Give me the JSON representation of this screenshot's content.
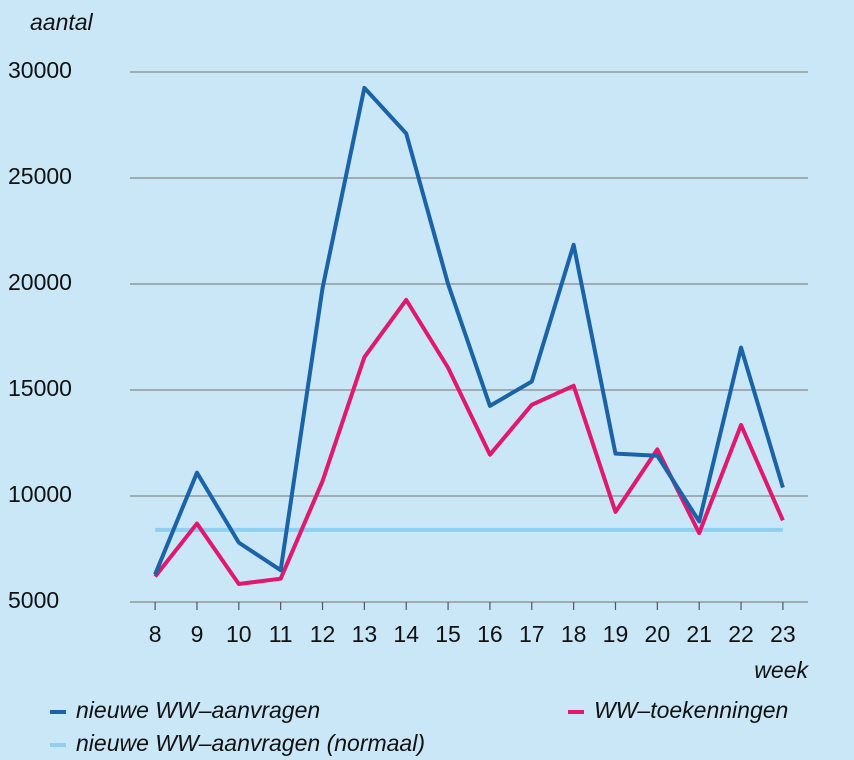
{
  "chart_data": {
    "type": "line",
    "y_label": "aantal",
    "x_label": "week",
    "x": [
      8,
      9,
      10,
      11,
      12,
      13,
      14,
      15,
      16,
      17,
      18,
      19,
      20,
      21,
      22,
      23
    ],
    "xlim": [
      7.4,
      23.6
    ],
    "xticks": [
      8,
      9,
      10,
      11,
      12,
      13,
      14,
      15,
      16,
      17,
      18,
      19,
      20,
      21,
      22,
      23
    ],
    "ylim": [
      5000,
      30000
    ],
    "yticks": [
      5000,
      10000,
      15000,
      20000,
      25000,
      30000
    ],
    "grid": true,
    "series": [
      {
        "name": "nieuwe WW–aanvragen",
        "color": "#1a63a8",
        "values": [
          6300,
          11100,
          7800,
          6500,
          19800,
          29250,
          27100,
          20000,
          14250,
          15400,
          21850,
          12000,
          11900,
          8800,
          17000,
          10400
        ]
      },
      {
        "name": "WW–toekenningen",
        "color": "#e0186e",
        "values": [
          6200,
          8700,
          5850,
          6100,
          10700,
          16550,
          19250,
          16050,
          11950,
          14300,
          15200,
          9250,
          12200,
          8250,
          13350,
          8850
        ]
      },
      {
        "name": "nieuwe WW–aanvragen (normaal)",
        "color": "#8fd0f2",
        "values": [
          8400,
          8400,
          8400,
          8400,
          8400,
          8400,
          8400,
          8400,
          8400,
          8400,
          8400,
          8400,
          8400,
          8400,
          8400,
          8400
        ]
      }
    ]
  }
}
